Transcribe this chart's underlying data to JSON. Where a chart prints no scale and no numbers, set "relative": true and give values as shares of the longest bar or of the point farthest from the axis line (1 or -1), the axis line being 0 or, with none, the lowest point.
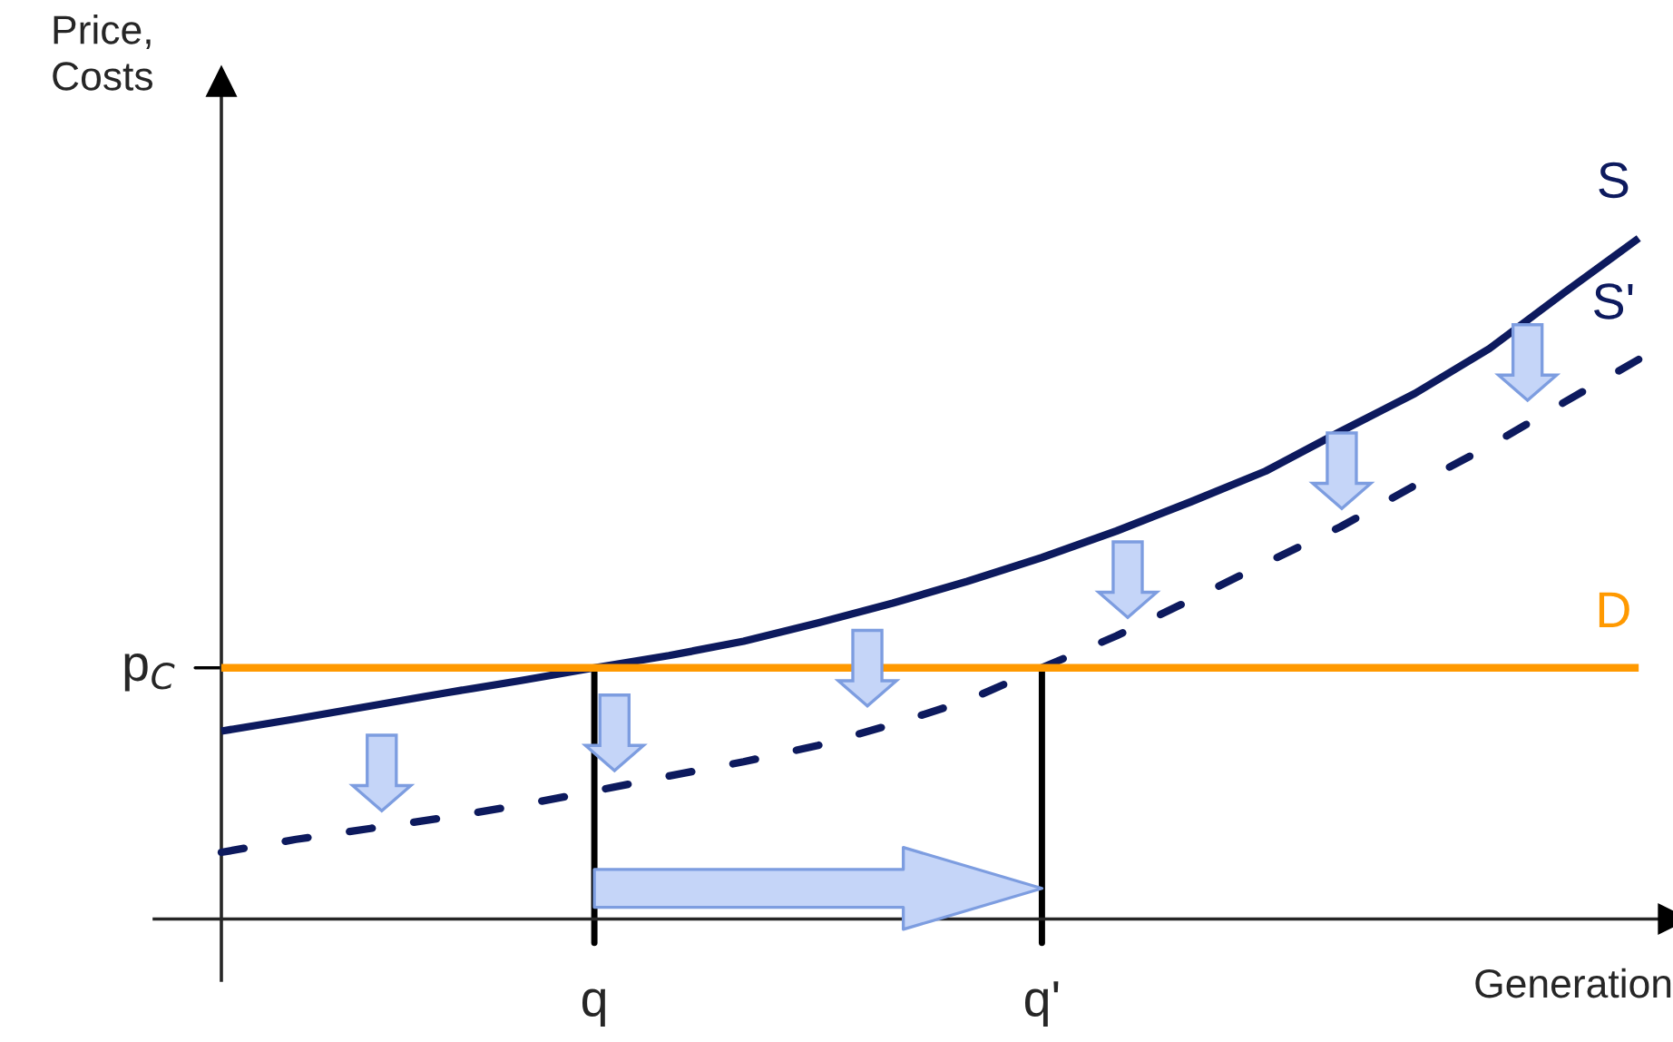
{
  "chart_data": {
    "type": "line",
    "relative": true,
    "xlabel": "Generation",
    "ylabel": "Price,\nCosts",
    "categories": [
      null,
      null,
      null,
      null,
      null,
      "q",
      null,
      null,
      null,
      null,
      null,
      "q'",
      null,
      null,
      null,
      null,
      null,
      null,
      null,
      null
    ],
    "series": [
      {
        "name": "S",
        "color": "#0d1a5e",
        "line_style": "solid",
        "values": [
          0.276,
          0.294,
          0.313,
          0.332,
          0.35,
          0.369,
          0.387,
          0.408,
          0.435,
          0.464,
          0.496,
          0.531,
          0.57,
          0.613,
          0.658,
          0.716,
          0.772,
          0.838,
          0.92,
          1.0
        ]
      },
      {
        "name": "S'",
        "color": "#0d1a5e",
        "line_style": "dashed",
        "values": [
          0.098,
          0.117,
          0.133,
          0.149,
          0.167,
          0.188,
          0.21,
          0.231,
          0.255,
          0.286,
          0.321,
          0.369,
          0.416,
          0.469,
          0.523,
          0.576,
          0.637,
          0.695,
          0.759,
          0.822
        ]
      },
      {
        "name": "D",
        "color": "#ff9900",
        "line_style": "solid",
        "values": [
          0.369,
          0.369,
          0.369,
          0.369,
          0.369,
          0.369,
          0.369,
          0.369,
          0.369,
          0.369,
          0.369,
          0.369,
          0.369,
          0.369,
          0.369,
          0.369,
          0.369,
          0.369,
          0.369,
          0.369
        ]
      }
    ],
    "ref_lines": [
      {
        "axis": "x",
        "value": "q",
        "color": "#000000"
      },
      {
        "axis": "x",
        "value": "q'",
        "color": "#000000"
      }
    ],
    "annotations": [
      "p$_{C}$"
    ],
    "legend": false
  }
}
